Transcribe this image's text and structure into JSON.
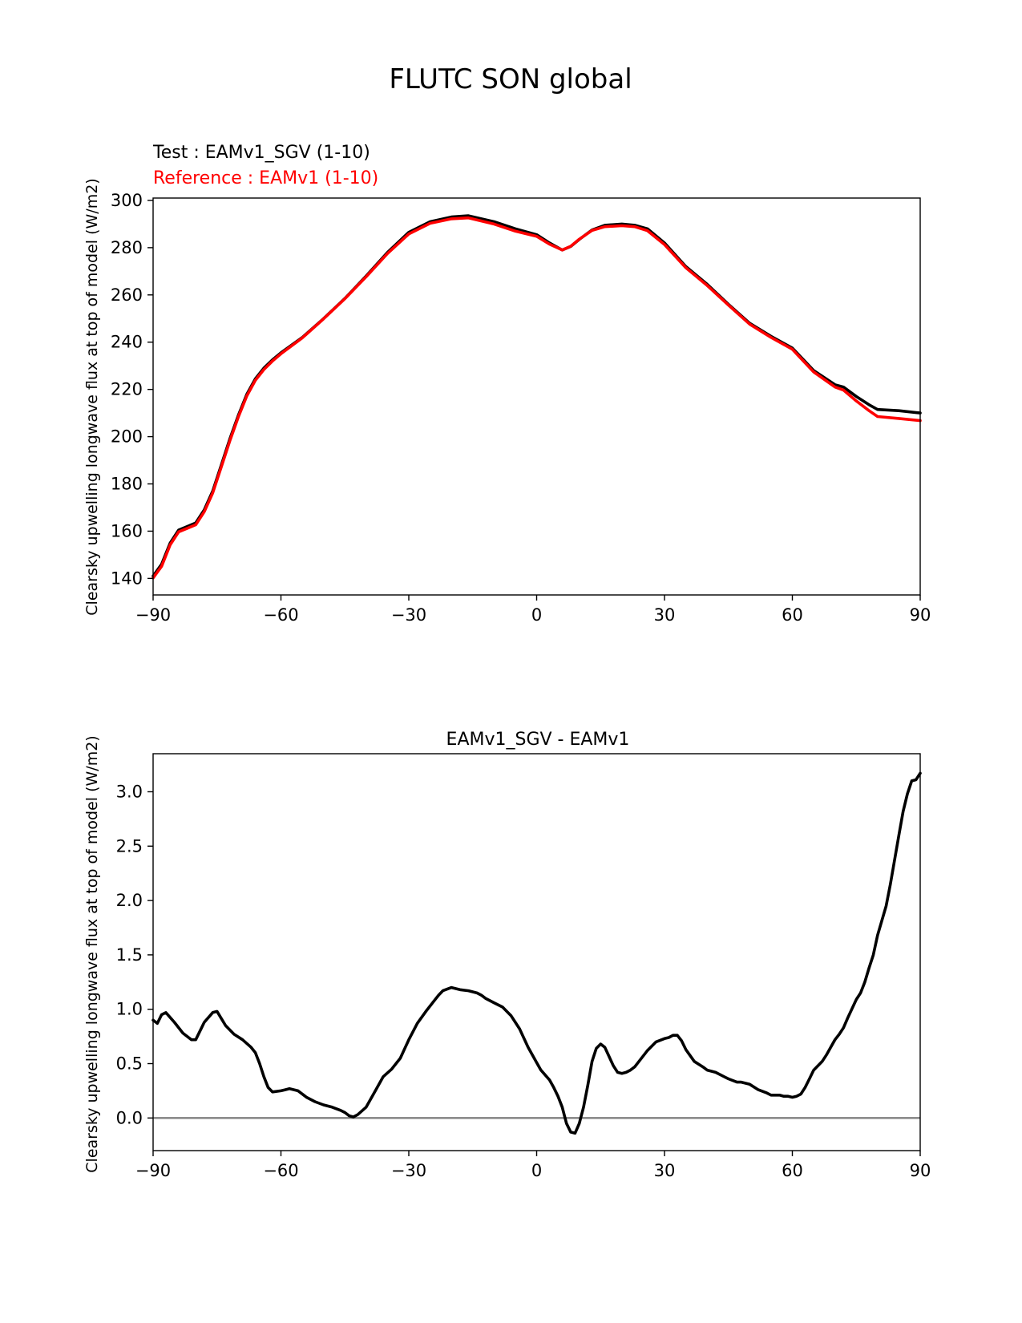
{
  "figure_title": "FLUTC SON global",
  "chart_data": [
    {
      "type": "line",
      "title": "",
      "test_label": "Test : EAMv1_SGV (1-10)",
      "reference_label": "Reference : EAMv1 (1-10)",
      "xlabel": "",
      "ylabel": "Clearsky upwelling longwave flux at top of model (W/m2)",
      "xlim": [
        -90,
        90
      ],
      "ylim": [
        133,
        301
      ],
      "xticks": [
        -90,
        -60,
        -30,
        0,
        30,
        60,
        90
      ],
      "xtick_labels": [
        "−90",
        "−60",
        "−30",
        "0",
        "30",
        "60",
        "90"
      ],
      "yticks": [
        140,
        160,
        180,
        200,
        220,
        240,
        260,
        280,
        300
      ],
      "ytick_labels": [
        "140",
        "160",
        "180",
        "200",
        "220",
        "240",
        "260",
        "280",
        "300"
      ],
      "x": [
        -90,
        -88,
        -86,
        -84,
        -82,
        -80,
        -78,
        -76,
        -74,
        -72,
        -70,
        -68,
        -66,
        -64,
        -62,
        -60,
        -55,
        -50,
        -45,
        -40,
        -35,
        -30,
        -25,
        -20,
        -16,
        -10,
        -5,
        0,
        3,
        6,
        8,
        10,
        13,
        16,
        20,
        23,
        26,
        30,
        35,
        40,
        45,
        50,
        55,
        60,
        65,
        70,
        72,
        75,
        78,
        80,
        85,
        90
      ],
      "series": [
        {
          "name": "EAMv1_SGV (1-10)",
          "color": "#000000",
          "values": [
            141,
            146,
            155,
            160.5,
            162,
            163.5,
            169,
            177,
            188,
            199,
            209,
            218,
            224.5,
            229,
            232.5,
            235.5,
            242,
            250,
            258.5,
            268,
            278,
            286.5,
            291,
            293,
            293.5,
            291,
            288,
            285.5,
            282,
            279,
            280.5,
            283.5,
            287.5,
            289.5,
            290,
            289.5,
            288,
            282,
            272,
            264.5,
            256,
            248,
            242.5,
            237.5,
            228,
            222,
            221,
            217,
            213.5,
            211.5,
            211,
            210
          ]
        },
        {
          "name": "EAMv1 (1-10)",
          "color": "#ff0000",
          "values": [
            140.2,
            145.1,
            154.2,
            159.7,
            161.2,
            162.7,
            168.2,
            176.2,
            187.2,
            198.2,
            208.3,
            217.3,
            223.9,
            228.4,
            232.0,
            235.1,
            241.8,
            249.9,
            258.4,
            267.7,
            277.5,
            285.8,
            290.3,
            292.2,
            292.6,
            290.0,
            287.0,
            284.8,
            281.5,
            279.0,
            280.6,
            283.6,
            287.3,
            288.9,
            289.3,
            288.9,
            287.2,
            281.3,
            271.5,
            264.0,
            255.7,
            247.6,
            242.0,
            237.0,
            227.4,
            221.0,
            219.7,
            215.1,
            211.0,
            208.5,
            207.7,
            206.8
          ]
        }
      ]
    },
    {
      "type": "line",
      "title": "EAMv1_SGV - EAMv1",
      "xlabel": "",
      "ylabel": "Clearsky upwelling longwave flux at top of model (W/m2)",
      "xlim": [
        -90,
        90
      ],
      "ylim": [
        -0.3,
        3.35
      ],
      "xticks": [
        -90,
        -60,
        -30,
        0,
        30,
        60,
        90
      ],
      "xtick_labels": [
        "−90",
        "−60",
        "−30",
        "0",
        "30",
        "60",
        "90"
      ],
      "yticks": [
        0.0,
        0.5,
        1.0,
        1.5,
        2.0,
        2.5,
        3.0
      ],
      "ytick_labels": [
        "0.0",
        "0.5",
        "1.0",
        "1.5",
        "2.0",
        "2.5",
        "3.0"
      ],
      "zero_line": 0,
      "x": [
        -90,
        -89,
        -88,
        -87,
        -85,
        -83,
        -81,
        -80,
        -78,
        -76,
        -75,
        -73,
        -71,
        -69,
        -67,
        -66,
        -65,
        -64,
        -63,
        -62,
        -60,
        -59,
        -58,
        -56,
        -54,
        -52,
        -50,
        -48,
        -46,
        -45,
        -44,
        -43,
        -42,
        -40,
        -38,
        -36,
        -34,
        -32,
        -30,
        -28,
        -26,
        -24,
        -23,
        -22,
        -20,
        -18,
        -16,
        -15,
        -14,
        -13,
        -12,
        -10,
        -8,
        -6,
        -4,
        -2,
        0,
        1,
        3,
        4,
        5,
        6,
        7,
        8,
        9,
        10,
        11,
        12,
        13,
        14,
        15,
        16,
        18,
        19,
        20,
        21,
        22,
        23,
        24,
        26,
        28,
        30,
        31,
        32,
        33,
        34,
        35,
        37,
        39,
        40,
        42,
        44,
        45,
        47,
        48,
        50,
        52,
        54,
        55,
        57,
        58,
        59,
        60,
        61,
        62,
        63,
        64,
        65,
        67,
        68,
        69,
        70,
        71,
        72,
        73,
        75,
        76,
        77,
        78,
        79,
        80,
        82,
        83,
        85,
        86,
        87,
        88,
        89,
        90
      ],
      "series": [
        {
          "name": "EAMv1_SGV - EAMv1",
          "color": "#000000",
          "values": [
            0.9,
            0.87,
            0.95,
            0.97,
            0.88,
            0.78,
            0.72,
            0.72,
            0.88,
            0.97,
            0.98,
            0.85,
            0.77,
            0.72,
            0.65,
            0.6,
            0.5,
            0.38,
            0.28,
            0.24,
            0.25,
            0.26,
            0.27,
            0.25,
            0.19,
            0.15,
            0.12,
            0.1,
            0.07,
            0.05,
            0.02,
            0.01,
            0.03,
            0.1,
            0.24,
            0.38,
            0.45,
            0.55,
            0.72,
            0.87,
            0.98,
            1.08,
            1.13,
            1.17,
            1.2,
            1.18,
            1.17,
            1.16,
            1.15,
            1.13,
            1.1,
            1.06,
            1.02,
            0.94,
            0.82,
            0.65,
            0.51,
            0.44,
            0.35,
            0.28,
            0.2,
            0.1,
            -0.05,
            -0.13,
            -0.14,
            -0.05,
            0.1,
            0.3,
            0.52,
            0.64,
            0.68,
            0.65,
            0.48,
            0.42,
            0.41,
            0.42,
            0.44,
            0.47,
            0.52,
            0.62,
            0.7,
            0.73,
            0.74,
            0.76,
            0.76,
            0.71,
            0.63,
            0.52,
            0.47,
            0.44,
            0.42,
            0.38,
            0.36,
            0.33,
            0.33,
            0.31,
            0.26,
            0.23,
            0.21,
            0.21,
            0.2,
            0.2,
            0.19,
            0.2,
            0.22,
            0.28,
            0.36,
            0.44,
            0.52,
            0.58,
            0.65,
            0.72,
            0.77,
            0.83,
            0.92,
            1.09,
            1.15,
            1.25,
            1.38,
            1.5,
            1.68,
            1.95,
            2.15,
            2.6,
            2.82,
            2.98,
            3.1,
            3.11,
            3.17
          ]
        }
      ]
    }
  ]
}
